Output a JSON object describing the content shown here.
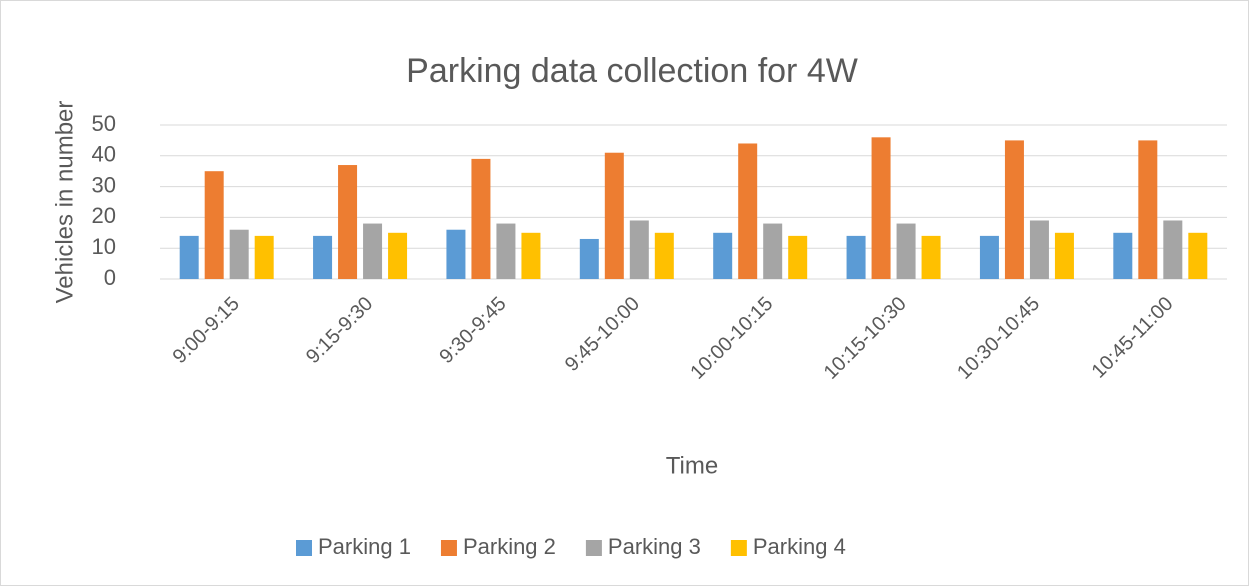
{
  "chart_data": {
    "type": "bar",
    "title": "Parking data collection for 4W",
    "x_label": "Time",
    "y_label": "Vehicles in number",
    "categories": [
      "9:00-9:15",
      "9:15-9:30",
      "9:30-9:45",
      "9:45-10:00",
      "10:00-10:15",
      "10:15-10:30",
      "10:30-10:45",
      "10:45-11:00"
    ],
    "series": [
      {
        "name": "Parking 1",
        "color": "#5b9bd5",
        "values": [
          14,
          14,
          16,
          13,
          15,
          14,
          14,
          15
        ]
      },
      {
        "name": "Parking 2",
        "color": "#ed7d31",
        "values": [
          35,
          37,
          39,
          41,
          44,
          46,
          45,
          45
        ]
      },
      {
        "name": "Parking 3",
        "color": "#a5a5a5",
        "values": [
          16,
          18,
          18,
          19,
          18,
          18,
          19,
          19
        ]
      },
      {
        "name": "Parking 4",
        "color": "#ffc000",
        "values": [
          14,
          15,
          15,
          15,
          14,
          14,
          15,
          15
        ]
      }
    ],
    "ylim": [
      0,
      50
    ],
    "yticks": [
      0,
      10,
      20,
      30,
      40,
      50
    ],
    "grid": true,
    "legend": "bottom"
  }
}
